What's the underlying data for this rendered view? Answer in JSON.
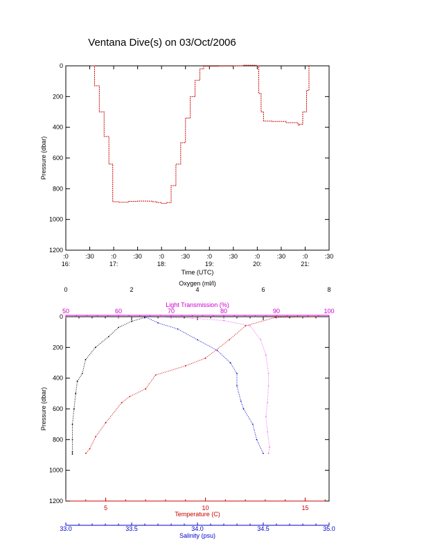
{
  "chart_data": [
    {
      "type": "line",
      "title": "Ventana Dive(s) on 03/Oct/2006",
      "xlabel": "Time (UTC)",
      "ylabel": "Pressure (dbar)",
      "xlim": [
        16.0,
        21.5
      ],
      "ylim": [
        1200,
        0
      ],
      "x_ticks": [
        {
          "v": 16.0,
          "l1": ":0",
          "l2": "16:"
        },
        {
          "v": 16.5,
          "l1": ":30",
          "l2": ""
        },
        {
          "v": 17.0,
          "l1": ":0",
          "l2": "17:"
        },
        {
          "v": 17.5,
          "l1": ":30",
          "l2": ""
        },
        {
          "v": 18.0,
          "l1": ":0",
          "l2": "18:"
        },
        {
          "v": 18.5,
          "l1": ":30",
          "l2": ""
        },
        {
          "v": 19.0,
          "l1": ":0",
          "l2": "19:"
        },
        {
          "v": 19.5,
          "l1": ":30",
          "l2": ""
        },
        {
          "v": 20.0,
          "l1": ":0",
          "l2": "20:"
        },
        {
          "v": 20.5,
          "l1": ":30",
          "l2": ""
        },
        {
          "v": 21.0,
          "l1": ":0",
          "l2": "21:"
        },
        {
          "v": 21.5,
          "l1": ":30",
          "l2": ""
        }
      ],
      "y_ticks": [
        0,
        200,
        400,
        600,
        800,
        1000,
        1200
      ],
      "grid": false,
      "series": [
        {
          "color": "#cc0000",
          "x": [
            16.53,
            16.6,
            16.7,
            16.8,
            16.9,
            16.98,
            17.1,
            17.3,
            17.5,
            17.7,
            17.8,
            17.9,
            18.0,
            18.1,
            18.2,
            18.3,
            18.4,
            18.5,
            18.6,
            18.7,
            18.8,
            18.88,
            18.95,
            19.2,
            19.5,
            19.7,
            19.98,
            20.03,
            20.08,
            20.13,
            20.3,
            20.6,
            20.85,
            20.88,
            20.95,
            21.03,
            21.08
          ],
          "y": [
            0,
            130,
            300,
            460,
            640,
            885,
            888,
            882,
            880,
            881,
            884,
            890,
            895,
            890,
            780,
            640,
            500,
            340,
            200,
            95,
            20,
            2,
            2,
            1,
            0,
            -4,
            0,
            180,
            300,
            360,
            362,
            370,
            385,
            380,
            300,
            160,
            0
          ]
        }
      ]
    },
    {
      "type": "scatter",
      "ylabel": "Pressure (dbar)",
      "ylim": [
        1200,
        0
      ],
      "y_ticks": [
        0,
        200,
        400,
        600,
        800,
        1000,
        1200
      ],
      "grid": false,
      "axes": [
        {
          "label": "Oxygen (ml/l)",
          "position": "top",
          "color": "#000000",
          "range": [
            0,
            8
          ],
          "ticks": [
            0,
            2,
            4,
            6,
            8
          ],
          "labels": [
            "0",
            "2",
            "4",
            "6",
            "8"
          ]
        },
        {
          "label": "Light Transmission (%)",
          "position": "top",
          "color": "#cc00cc",
          "range": [
            50,
            100
          ],
          "ticks": [
            50,
            60,
            70,
            80,
            90,
            100
          ],
          "labels": [
            "50",
            "60",
            "70",
            "80",
            "90",
            "100"
          ]
        },
        {
          "label": "Temperature (C)",
          "position": "bottom",
          "color": "#cc0000",
          "range": [
            3.0,
            16.2
          ],
          "ticks": [
            5,
            10,
            15
          ],
          "labels": [
            "5",
            "10",
            "15"
          ]
        },
        {
          "label": "Salinity (psu)",
          "position": "bottom",
          "color": "#0000cc",
          "range": [
            33.0,
            35.0
          ],
          "ticks": [
            33.0,
            33.5,
            34.0,
            34.5,
            35.0
          ],
          "labels": [
            "33.0",
            "33.5",
            "34.0",
            "34.5",
            "35.0"
          ]
        }
      ],
      "series": [
        {
          "axis": 0,
          "color": "#000000",
          "x": [
            2.4,
            2.0,
            1.6,
            1.3,
            0.9,
            0.6,
            0.5,
            0.35,
            0.3,
            0.25,
            0.2,
            0.2,
            0.2,
            0.2
          ],
          "y": [
            5,
            30,
            70,
            130,
            200,
            280,
            370,
            420,
            500,
            600,
            700,
            800,
            880,
            895
          ]
        },
        {
          "axis": 1,
          "color": "#ee66ee",
          "x": [
            68,
            74,
            80,
            85,
            87,
            88,
            88.5,
            88.5,
            88.3,
            88.0,
            88.3,
            88.7,
            88.5
          ],
          "y": [
            2,
            10,
            25,
            60,
            150,
            250,
            370,
            450,
            560,
            650,
            750,
            850,
            890
          ]
        },
        {
          "axis": 2,
          "color": "#cc0000",
          "x": [
            15.5,
            13.5,
            12.0,
            11.2,
            10.0,
            9.0,
            7.5,
            7.0,
            6.2,
            5.8,
            5.0,
            4.5,
            4.2,
            4.0
          ],
          "y": [
            0,
            5,
            60,
            150,
            270,
            320,
            380,
            470,
            520,
            560,
            690,
            780,
            860,
            890
          ]
        },
        {
          "axis": 3,
          "color": "#0000cc",
          "x": [
            33.6,
            33.7,
            33.85,
            34.0,
            34.15,
            34.25,
            34.3,
            34.3,
            34.33,
            34.35,
            34.42,
            34.45,
            34.5
          ],
          "y": [
            0,
            40,
            80,
            150,
            220,
            300,
            370,
            450,
            550,
            600,
            700,
            800,
            890
          ]
        }
      ]
    }
  ]
}
